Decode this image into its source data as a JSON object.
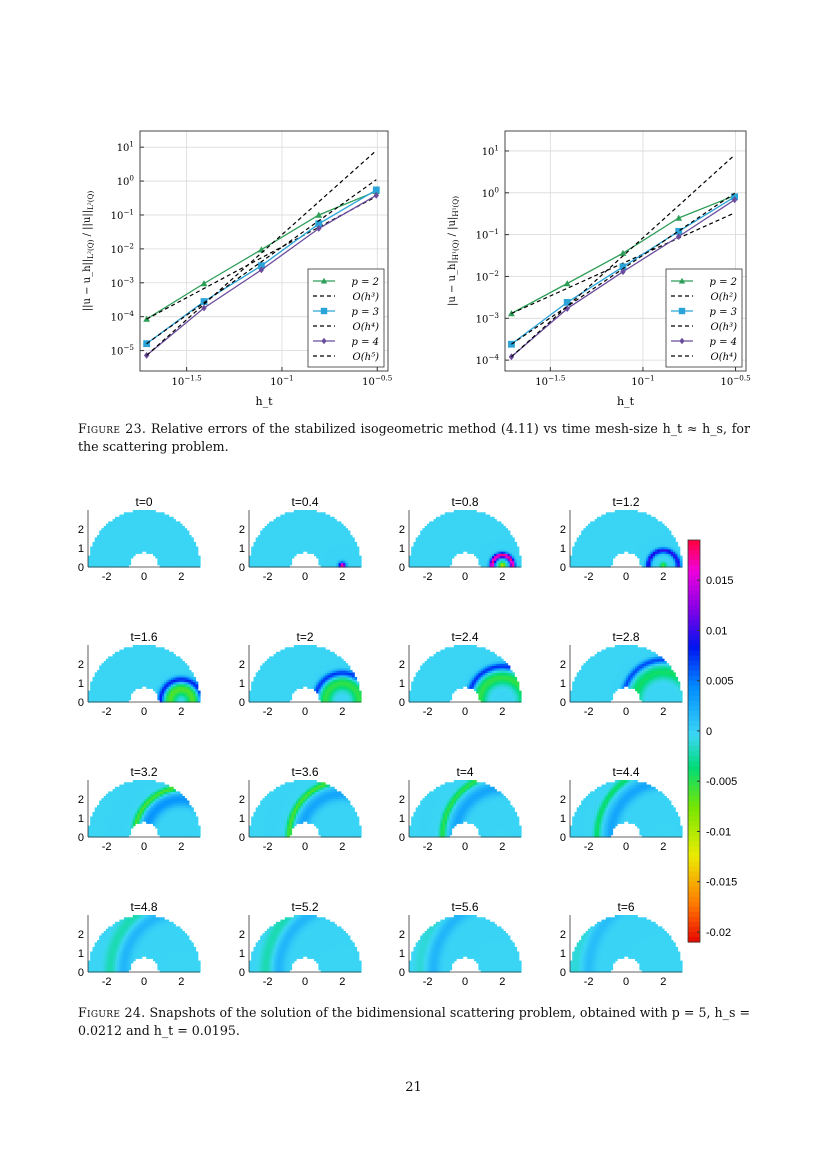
{
  "colors": {
    "p2": "#2e9e58",
    "p3": "#2aa3d8",
    "p4": "#6a4c9c",
    "ref": "#000000",
    "grid": "#d9d9d9",
    "field_base": "#3fd6f2"
  },
  "chart_data": [
    {
      "type": "line",
      "log_x": true,
      "log_y": true,
      "xlabel": "h_t",
      "ylabel": "||u − u_h||_{L²(Q)} / ||u||_{L²(Q)}",
      "xlim": [
        0.018,
        0.36
      ],
      "ylim": [
        2.5e-06,
        30
      ],
      "x_ticks": [
        {
          "value": 0.03162,
          "label": "10^{−1.5}"
        },
        {
          "value": 0.1,
          "label": "10^{−1}"
        },
        {
          "value": 0.3162,
          "label": "10^{−0.5}"
        }
      ],
      "y_ticks": [
        {
          "value": 1e-05,
          "label": "10^{−5}"
        },
        {
          "value": 0.0001,
          "label": "10^{−4}"
        },
        {
          "value": 0.001,
          "label": "10^{−3}"
        },
        {
          "value": 0.01,
          "label": "10^{−2}"
        },
        {
          "value": 0.1,
          "label": "10^{−1}"
        },
        {
          "value": 1,
          "label": "10^{0}"
        },
        {
          "value": 10,
          "label": "10^{1}"
        }
      ],
      "grid": true,
      "legend_position": "bottom-right",
      "series": [
        {
          "name": "p = 2",
          "style": "solid",
          "marker": "triangle",
          "color": "#2e9e58",
          "x": [
            0.0195,
            0.039,
            0.078,
            0.156,
            0.3125
          ],
          "y": [
            8.5e-05,
            0.00095,
            0.0095,
            0.1,
            0.5
          ]
        },
        {
          "name": "O(h³)",
          "style": "dashed",
          "color": "#000000",
          "x": [
            0.0195,
            0.3125
          ],
          "y": [
            8.5e-05,
            0.35
          ]
        },
        {
          "name": "p = 3",
          "style": "solid",
          "marker": "square",
          "color": "#2aa3d8",
          "x": [
            0.0195,
            0.039,
            0.078,
            0.156,
            0.3125
          ],
          "y": [
            1.6e-05,
            0.00028,
            0.0032,
            0.055,
            0.55
          ]
        },
        {
          "name": "O(h⁴)",
          "style": "dashed",
          "color": "#000000",
          "x": [
            0.0195,
            0.3125
          ],
          "y": [
            1.6e-05,
            1.1
          ]
        },
        {
          "name": "p = 4",
          "style": "solid",
          "marker": "diamond",
          "color": "#6a4c9c",
          "x": [
            0.0195,
            0.039,
            0.078,
            0.156,
            0.3125
          ],
          "y": [
            7.2e-06,
            0.00018,
            0.0024,
            0.04,
            0.38
          ]
        },
        {
          "name": "O(h⁵)",
          "style": "dashed",
          "color": "#000000",
          "x": [
            0.0195,
            0.3125
          ],
          "y": [
            7.2e-06,
            8
          ]
        }
      ]
    },
    {
      "type": "line",
      "log_x": true,
      "log_y": true,
      "xlabel": "h_t",
      "ylabel": "|u − u_h|_{H¹(Q)} / |u|_{H¹(Q)}",
      "xlim": [
        0.018,
        0.36
      ],
      "ylim": [
        5.5e-05,
        30
      ],
      "x_ticks": [
        {
          "value": 0.03162,
          "label": "10^{−1.5}"
        },
        {
          "value": 0.1,
          "label": "10^{−1}"
        },
        {
          "value": 0.3162,
          "label": "10^{−0.5}"
        }
      ],
      "y_ticks": [
        {
          "value": 0.0001,
          "label": "10^{−4}"
        },
        {
          "value": 0.001,
          "label": "10^{−3}"
        },
        {
          "value": 0.01,
          "label": "10^{−2}"
        },
        {
          "value": 0.1,
          "label": "10^{−1}"
        },
        {
          "value": 1,
          "label": "10^{0}"
        },
        {
          "value": 10,
          "label": "10^{1}"
        }
      ],
      "grid": true,
      "legend_position": "bottom-right",
      "series": [
        {
          "name": "p = 2",
          "style": "solid",
          "marker": "triangle",
          "color": "#2e9e58",
          "x": [
            0.0195,
            0.039,
            0.078,
            0.156,
            0.3125
          ],
          "y": [
            0.0013,
            0.0068,
            0.036,
            0.25,
            0.85
          ]
        },
        {
          "name": "O(h²)",
          "style": "dashed",
          "color": "#000000",
          "x": [
            0.0195,
            0.3125
          ],
          "y": [
            0.0013,
            0.33
          ]
        },
        {
          "name": "p = 3",
          "style": "solid",
          "marker": "square",
          "color": "#2aa3d8",
          "x": [
            0.0195,
            0.039,
            0.078,
            0.156,
            0.3125
          ],
          "y": [
            0.00024,
            0.0024,
            0.017,
            0.12,
            0.8
          ]
        },
        {
          "name": "O(h³)",
          "style": "dashed",
          "color": "#000000",
          "x": [
            0.0195,
            0.3125
          ],
          "y": [
            0.00024,
            0.98
          ]
        },
        {
          "name": "p = 4",
          "style": "solid",
          "marker": "diamond",
          "color": "#6a4c9c",
          "x": [
            0.0195,
            0.039,
            0.078,
            0.156,
            0.3125
          ],
          "y": [
            0.00012,
            0.0017,
            0.013,
            0.09,
            0.68
          ]
        },
        {
          "name": "O(h⁴)",
          "style": "dashed",
          "color": "#000000",
          "x": [
            0.0195,
            0.3125
          ],
          "y": [
            0.00012,
            8
          ]
        }
      ]
    },
    {
      "type": "heatmap",
      "panel_xlim": [
        -3,
        3
      ],
      "panel_ylim": [
        0,
        3
      ],
      "panel_x_ticks": [
        "-2",
        "0",
        "2"
      ],
      "panel_y_ticks": [
        "0",
        "1",
        "2"
      ],
      "colorbar": {
        "min": -0.021,
        "max": 0.019,
        "ticks": [
          0.015,
          0.01,
          0.005,
          0,
          -0.005,
          -0.01,
          -0.015,
          -0.02
        ],
        "tick_labels": [
          "0.015",
          "0.01",
          "0.005",
          "0",
          "-0.005",
          "-0.01",
          "-0.015",
          "-0.02"
        ]
      },
      "panels": [
        {
          "title": "t=0",
          "blobs": []
        },
        {
          "title": "t=0.4",
          "blobs": [
            {
              "type": "pulse",
              "cx": 2.0,
              "cy": 0.1,
              "r": 0.35,
              "amp": 0.019
            }
          ]
        },
        {
          "title": "t=0.8",
          "blobs": [
            {
              "type": "ring",
              "cx": 2.0,
              "cy": 0.1,
              "r": 0.55,
              "amp": 0.018
            }
          ]
        },
        {
          "title": "t=1.2",
          "blobs": [
            {
              "type": "ring",
              "cx": 2.0,
              "cy": 0.1,
              "r": 0.8,
              "amp": 0.01
            }
          ]
        },
        {
          "title": "t=1.6",
          "blobs": [
            {
              "type": "arc",
              "cx": 2.0,
              "cy": 0.1,
              "r": 1.1,
              "amp": 0.009
            },
            {
              "type": "inner",
              "cx": 2.0,
              "cy": 0.1,
              "r": 0.6,
              "amp": -0.006
            }
          ]
        },
        {
          "title": "t=2",
          "blobs": [
            {
              "type": "arc",
              "cx": 2.0,
              "cy": 0.1,
              "r": 1.45,
              "amp": 0.008
            },
            {
              "type": "inner",
              "cx": 2.0,
              "cy": 0.1,
              "r": 0.9,
              "amp": -0.005
            }
          ]
        },
        {
          "title": "t=2.4",
          "blobs": [
            {
              "type": "arc",
              "cx": 2.0,
              "cy": 0.1,
              "r": 1.8,
              "amp": 0.008
            },
            {
              "type": "inner",
              "cx": 2.0,
              "cy": 0.1,
              "r": 1.2,
              "amp": -0.005
            }
          ]
        },
        {
          "title": "t=2.8",
          "blobs": [
            {
              "type": "arc",
              "cx": 2.0,
              "cy": 0.1,
              "r": 2.15,
              "amp": 0.007
            },
            {
              "type": "inner",
              "cx": 2.0,
              "cy": 0.1,
              "r": 1.5,
              "amp": -0.004
            }
          ]
        },
        {
          "title": "t=3.2",
          "blobs": [
            {
              "type": "arc",
              "cx": 2.0,
              "cy": 0.1,
              "r": 2.5,
              "amp": -0.006
            },
            {
              "type": "inner",
              "cx": 2.0,
              "cy": 0.1,
              "r": 1.9,
              "amp": 0.004
            }
          ]
        },
        {
          "title": "t=3.6",
          "blobs": [
            {
              "type": "arc",
              "cx": 2.0,
              "cy": 0.1,
              "r": 2.85,
              "amp": -0.006
            },
            {
              "type": "inner",
              "cx": 2.0,
              "cy": 0.1,
              "r": 2.2,
              "amp": 0.003
            }
          ]
        },
        {
          "title": "t=4",
          "blobs": [
            {
              "type": "arc",
              "cx": 2.0,
              "cy": 0.1,
              "r": 3.2,
              "amp": -0.005
            },
            {
              "type": "inner",
              "cx": 2.0,
              "cy": 0.1,
              "r": 2.5,
              "amp": 0.003
            }
          ]
        },
        {
          "title": "t=4.4",
          "blobs": [
            {
              "type": "arc",
              "cx": 2.0,
              "cy": 0.1,
              "r": 3.55,
              "amp": -0.004
            },
            {
              "type": "inner",
              "cx": 2.0,
              "cy": 0.1,
              "r": 2.8,
              "amp": 0.003
            }
          ]
        },
        {
          "title": "t=4.8",
          "blobs": [
            {
              "type": "inner",
              "cx": 2.0,
              "cy": 0.1,
              "r": 3.1,
              "amp": 0.002
            },
            {
              "type": "inner",
              "cx": 2.0,
              "cy": 0.1,
              "r": 3.8,
              "amp": -0.002
            }
          ]
        },
        {
          "title": "t=5.2",
          "blobs": [
            {
              "type": "inner",
              "cx": 2.0,
              "cy": 0.1,
              "r": 3.4,
              "amp": 0.002
            },
            {
              "type": "inner",
              "cx": 2.0,
              "cy": 0.1,
              "r": 4.1,
              "amp": -0.002
            }
          ]
        },
        {
          "title": "t=5.6",
          "blobs": [
            {
              "type": "inner",
              "cx": 2.0,
              "cy": 0.1,
              "r": 3.7,
              "amp": 0.002
            },
            {
              "type": "inner",
              "cx": 2.0,
              "cy": 0.1,
              "r": 4.4,
              "amp": -0.001
            }
          ]
        },
        {
          "title": "t=6",
          "blobs": [
            {
              "type": "inner",
              "cx": 2.0,
              "cy": 0.1,
              "r": 4.0,
              "amp": 0.0015
            },
            {
              "type": "inner",
              "cx": 2.0,
              "cy": 0.1,
              "r": 4.7,
              "amp": -0.001
            }
          ]
        }
      ]
    }
  ],
  "captions": {
    "fig23_label": "Figure 23.",
    "fig23_text": "Relative errors of the stabilized isogeometric method (4.11) vs time mesh-size h_t ≈ h_s, for the scattering problem.",
    "fig24_label": "Figure 24.",
    "fig24_text": "Snapshots of the solution of the bidimensional scattering problem, obtained with p = 5, h_s = 0.0212 and h_t = 0.0195."
  },
  "page_number": "21"
}
